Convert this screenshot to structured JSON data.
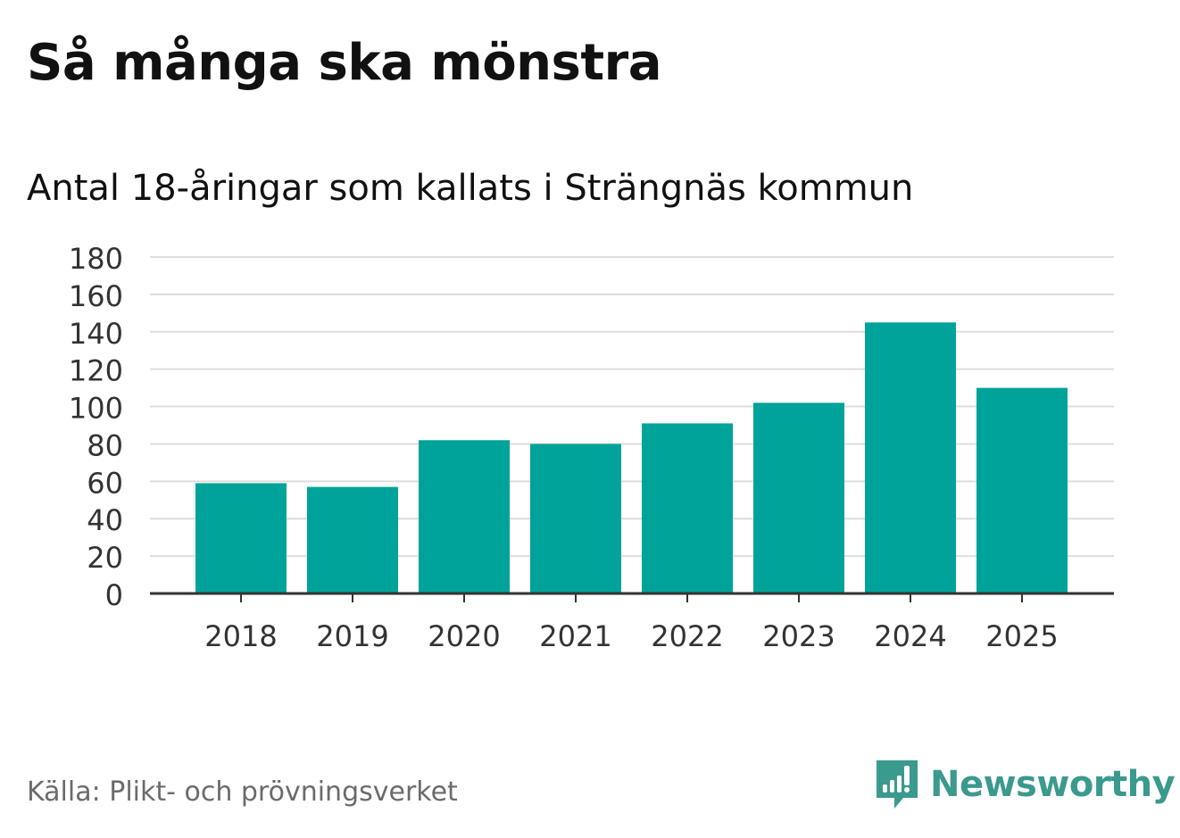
{
  "title": "Så många ska mönstra",
  "subtitle": "Antal 18-åringar som kallats i Strängnäs kommun",
  "source": "Källa: Plikt- och prövningsverket",
  "logo": {
    "text": "Newsworthy",
    "icon": "newsworthy-chart-icon",
    "color": "#3a9a8e"
  },
  "colors": {
    "bar": "#00a399",
    "grid": "#dddddd",
    "axis": "#333333"
  },
  "chart_data": {
    "type": "bar",
    "title": "Så många ska mönstra",
    "subtitle": "Antal 18-åringar som kallats i Strängnäs kommun",
    "categories": [
      "2018",
      "2019",
      "2020",
      "2021",
      "2022",
      "2023",
      "2024",
      "2025"
    ],
    "values": [
      59,
      57,
      82,
      80,
      91,
      102,
      145,
      110
    ],
    "ylim": [
      0,
      180
    ],
    "yticks": [
      0,
      20,
      40,
      60,
      80,
      100,
      120,
      140,
      160,
      180
    ],
    "xlabel": "",
    "ylabel": "",
    "grid": true
  }
}
